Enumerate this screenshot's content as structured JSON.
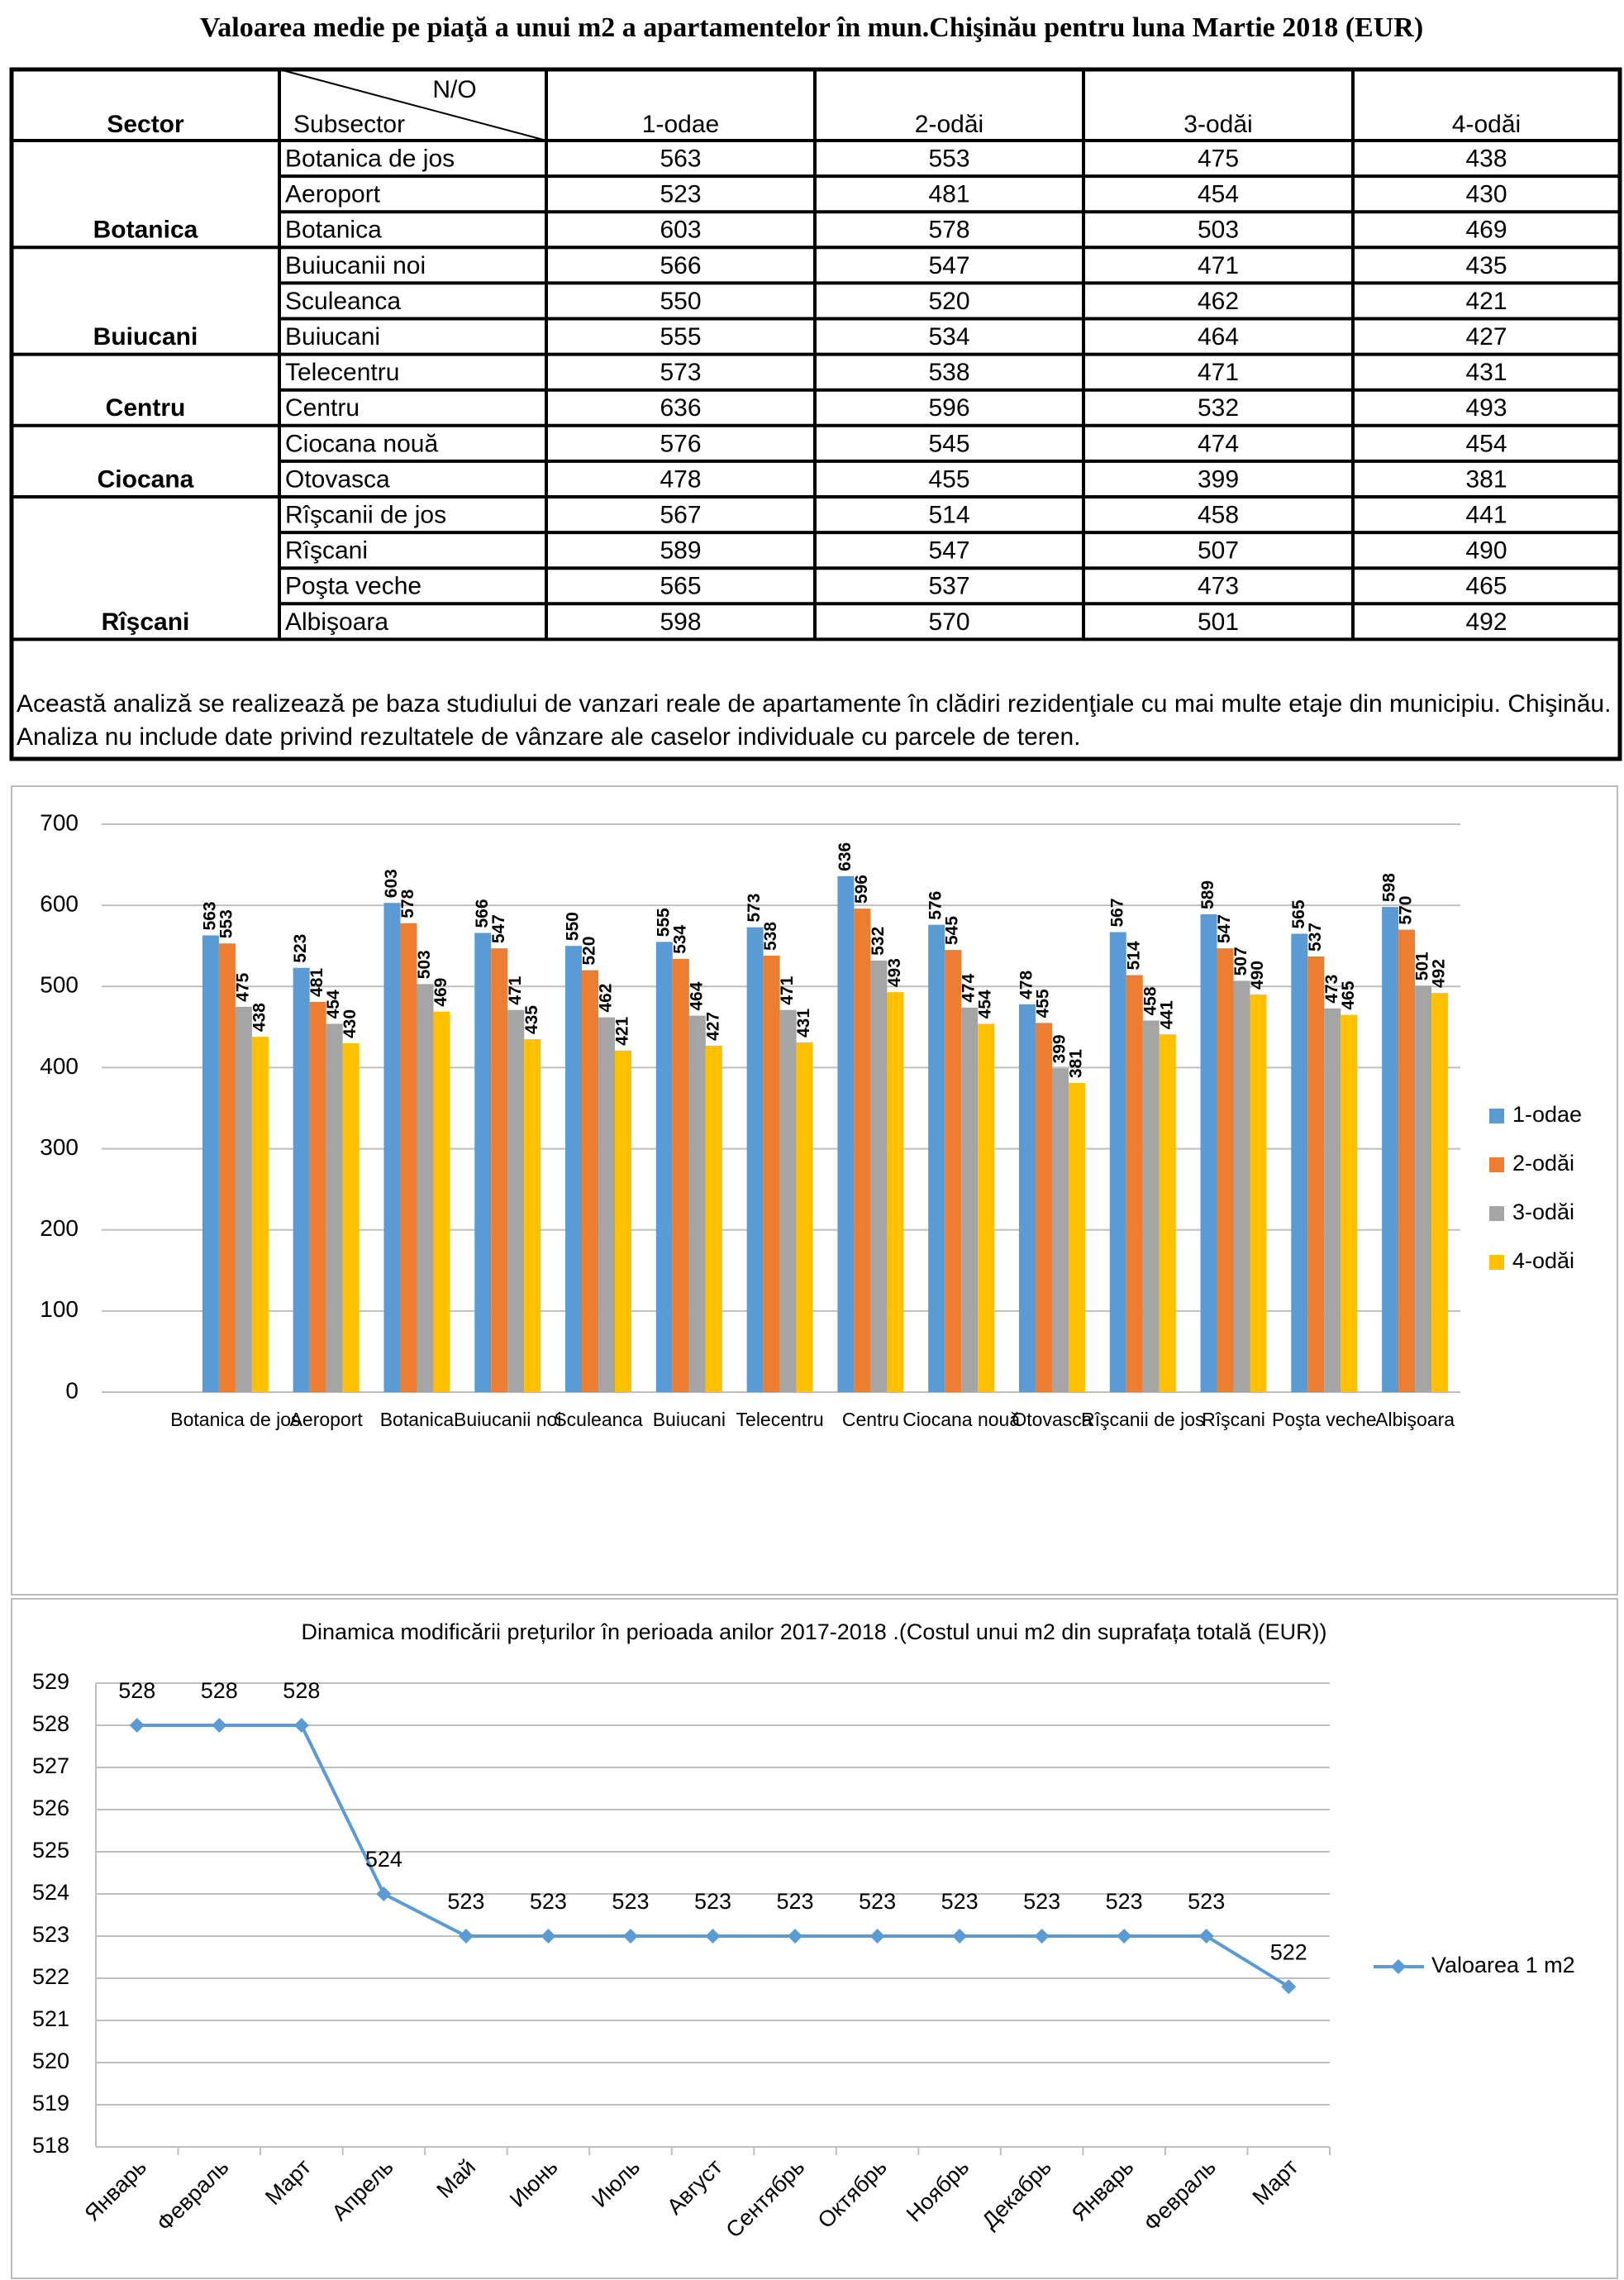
{
  "title": "Valoarea medie pe piaţă a unui m2 a apartamentelor în mun.Chişinău pentru luna Martie 2018 (EUR)",
  "table": {
    "sector_header": "Sector",
    "corner_top": "N/O",
    "corner_bottom": "Subsector",
    "columns": [
      "1-odae",
      "2-odăi",
      "3-odăi",
      "4-odăi"
    ],
    "groups": [
      {
        "sector": "Botanica",
        "rows": [
          {
            "subsector": "Botanica de jos",
            "values": [
              563,
              553,
              475,
              438
            ]
          },
          {
            "subsector": "Aeroport",
            "values": [
              523,
              481,
              454,
              430
            ]
          },
          {
            "subsector": "Botanica",
            "values": [
              603,
              578,
              503,
              469
            ]
          }
        ]
      },
      {
        "sector": "Buiucani",
        "rows": [
          {
            "subsector": "Buiucanii noi",
            "values": [
              566,
              547,
              471,
              435
            ]
          },
          {
            "subsector": "Sculeanca",
            "values": [
              550,
              520,
              462,
              421
            ]
          },
          {
            "subsector": "Buiucani",
            "values": [
              555,
              534,
              464,
              427
            ]
          }
        ]
      },
      {
        "sector": "Centru",
        "rows": [
          {
            "subsector": "Telecentru",
            "values": [
              573,
              538,
              471,
              431
            ]
          },
          {
            "subsector": "Centru",
            "values": [
              636,
              596,
              532,
              493
            ]
          }
        ]
      },
      {
        "sector": "Ciocana",
        "rows": [
          {
            "subsector": "Ciocana nouă",
            "values": [
              576,
              545,
              474,
              454
            ]
          },
          {
            "subsector": "Otovasca",
            "values": [
              478,
              455,
              399,
              381
            ]
          }
        ]
      },
      {
        "sector": "Rîşcani",
        "rows": [
          {
            "subsector": "Rîşcanii de jos",
            "values": [
              567,
              514,
              458,
              441
            ]
          },
          {
            "subsector": "Rîşcani",
            "values": [
              589,
              547,
              507,
              490
            ]
          },
          {
            "subsector": "Poşta veche",
            "values": [
              565,
              537,
              473,
              465
            ]
          },
          {
            "subsector": "Albişoara",
            "values": [
              598,
              570,
              501,
              492
            ]
          }
        ]
      }
    ]
  },
  "note": "Această analiză se realizează pe baza studiului de vanzari reale de apartamente în clădiri rezidenţiale cu mai multe etaje din municipiu. Chişinău. Analiza nu include date privind rezultatele de vânzare ale caselor individuale cu parcele de teren.",
  "chart_data": [
    {
      "type": "bar",
      "categories": [
        "Botanica de jos",
        "Aeroport",
        "Botanica",
        "Buiucanii noi",
        "Sculeanca",
        "Buiucani",
        "Telecentru",
        "Centru",
        "Ciocana nouă",
        "Otovasca",
        "Rîşcanii de jos",
        "Rîşcani",
        "Poşta veche",
        "Albişoara"
      ],
      "series": [
        {
          "name": "1-odae",
          "color": "#5b9bd5",
          "values": [
            563,
            523,
            603,
            566,
            550,
            555,
            573,
            636,
            576,
            478,
            567,
            589,
            565,
            598
          ]
        },
        {
          "name": "2-odăi",
          "color": "#ed7d31",
          "values": [
            553,
            481,
            578,
            547,
            520,
            534,
            538,
            596,
            545,
            455,
            514,
            547,
            537,
            570
          ]
        },
        {
          "name": "3-odăi",
          "color": "#a5a5a5",
          "values": [
            475,
            454,
            503,
            471,
            462,
            464,
            471,
            532,
            474,
            399,
            458,
            507,
            473,
            501
          ]
        },
        {
          "name": "4-odăi",
          "color": "#ffc000",
          "values": [
            438,
            430,
            469,
            435,
            421,
            427,
            431,
            493,
            454,
            381,
            441,
            490,
            465,
            492
          ]
        }
      ],
      "ylim": [
        0,
        700
      ],
      "yticks": [
        0,
        100,
        200,
        300,
        400,
        500,
        600,
        700
      ],
      "grid": true,
      "legend": "right"
    },
    {
      "type": "line",
      "title": "Dinamica modificării prețurilor în perioada anilor 2017-2018 .(Costul unui m2 din suprafața totală (EUR))",
      "categories": [
        "Январь",
        "Февраль",
        "Март",
        "Апрель",
        "Май",
        "Июнь",
        "Июль",
        "Август",
        "Сентябрь",
        "Октябрь",
        "Ноябрь",
        "Декабрь",
        "Январь",
        "Февраль",
        "Март"
      ],
      "series": [
        {
          "name": "Valoarea 1 m2",
          "color": "#5b9bd5",
          "values": [
            528,
            528,
            528,
            524,
            523,
            523,
            523,
            523,
            523,
            523,
            523,
            523,
            523,
            523,
            521.8
          ],
          "value_labels": [
            "528",
            "528",
            "528",
            "524",
            "523",
            "523",
            "523",
            "523",
            "523",
            "523",
            "523",
            "523",
            "523",
            "523",
            "522"
          ]
        }
      ],
      "ylim": [
        518,
        529
      ],
      "yticks": [
        518,
        519,
        520,
        521,
        522,
        523,
        524,
        525,
        526,
        527,
        528,
        529
      ],
      "grid": true,
      "legend": "right"
    }
  ]
}
